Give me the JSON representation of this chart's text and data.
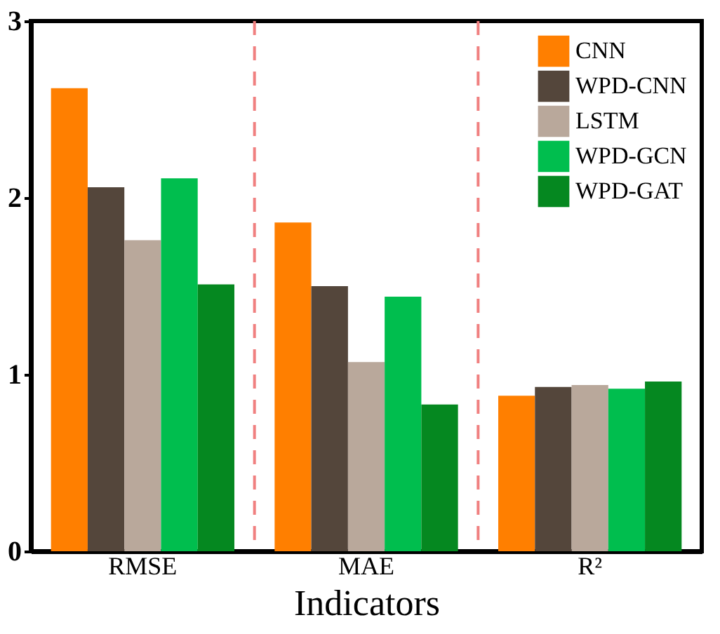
{
  "chart_data": {
    "type": "bar",
    "xlabel": "Indicators",
    "categories": [
      "RMSE",
      "MAE",
      "R²"
    ],
    "series": [
      {
        "name": "CNN",
        "color": "#ff7f00",
        "values": [
          2.62,
          1.86,
          0.88
        ]
      },
      {
        "name": "WPD-CNN",
        "color": "#54463b",
        "values": [
          2.06,
          1.5,
          0.93
        ]
      },
      {
        "name": "LSTM",
        "color": "#b9a89b",
        "values": [
          1.76,
          1.07,
          0.94
        ]
      },
      {
        "name": "WPD-GCN",
        "color": "#00be4e",
        "values": [
          2.11,
          1.44,
          0.92
        ]
      },
      {
        "name": "WPD-GAT",
        "color": "#058820",
        "values": [
          1.51,
          0.83,
          0.96
        ]
      }
    ],
    "ylim": [
      0,
      3
    ],
    "yticks": [
      0,
      1,
      2,
      3
    ],
    "grid": false,
    "legend": "top right"
  }
}
